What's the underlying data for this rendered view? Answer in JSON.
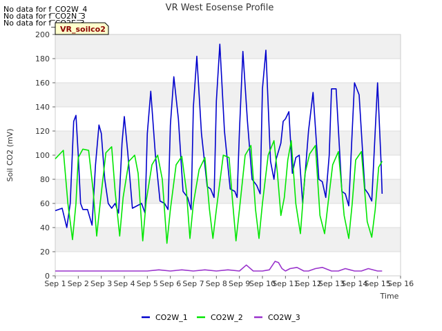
{
  "no_data_messages": [
    "No data for f_CO2W_4",
    "No data for f_CO2N_3",
    "No data for f_CO2E_3"
  ],
  "site_label": "VR_soilco2",
  "chart_data": {
    "type": "line",
    "title": "VR West Eosense Profile",
    "xlabel": "Time",
    "ylabel": "Soil CO2 (mV)",
    "xlim": [
      1,
      16
    ],
    "ylim": [
      0,
      200
    ],
    "x_ticks": [
      1,
      2,
      3,
      4,
      5,
      6,
      7,
      8,
      9,
      10,
      11,
      12,
      13,
      14,
      15,
      16
    ],
    "x_tick_labels": [
      "Sep 1",
      "Sep 2",
      "Sep 3",
      "Sep 4",
      "Sep 5",
      "Sep 6",
      "Sep 7",
      "Sep 8",
      "Sep 9",
      "Sep 10",
      "Sep 11",
      "Sep 12",
      "Sep 13",
      "Sep 14",
      "Sep 15",
      "Sep 16"
    ],
    "y_ticks": [
      0,
      20,
      40,
      60,
      80,
      100,
      120,
      140,
      160,
      180,
      200
    ],
    "grid": true,
    "legend_position": "bottom",
    "series": [
      {
        "name": "CO2W_1",
        "color": "#0000cc",
        "x": [
          1.0,
          1.3,
          1.5,
          1.65,
          1.8,
          1.9,
          2.0,
          2.1,
          2.2,
          2.4,
          2.6,
          2.75,
          2.9,
          3.0,
          3.15,
          3.3,
          3.45,
          3.6,
          3.75,
          3.9,
          4.0,
          4.15,
          4.35,
          4.55,
          4.75,
          4.9,
          5.0,
          5.15,
          5.35,
          5.55,
          5.75,
          5.9,
          6.0,
          6.15,
          6.35,
          6.55,
          6.75,
          6.9,
          7.0,
          7.15,
          7.35,
          7.6,
          7.75,
          7.9,
          8.0,
          8.15,
          8.35,
          8.6,
          8.8,
          8.9,
          9.0,
          9.15,
          9.35,
          9.55,
          9.75,
          9.9,
          10.0,
          10.15,
          10.35,
          10.5,
          10.6,
          10.8,
          10.9,
          11.0,
          11.15,
          11.3,
          11.45,
          11.6,
          11.75,
          11.9,
          12.0,
          12.2,
          12.45,
          12.6,
          12.75,
          12.9,
          13.0,
          13.2,
          13.45,
          13.6,
          13.75,
          13.9,
          14.0,
          14.2,
          14.45,
          14.6,
          14.75,
          14.9,
          15.0,
          15.15,
          15.2
        ],
        "values": [
          54,
          56,
          40,
          60,
          128,
          133,
          100,
          60,
          55,
          55,
          42,
          92,
          125,
          118,
          80,
          60,
          56,
          60,
          52,
          110,
          132,
          102,
          56,
          58,
          60,
          52,
          118,
          153,
          100,
          62,
          60,
          55,
          125,
          165,
          130,
          70,
          65,
          55,
          140,
          182,
          118,
          74,
          72,
          65,
          145,
          192,
          120,
          72,
          70,
          65,
          120,
          186,
          128,
          80,
          75,
          68,
          155,
          187,
          95,
          80,
          97,
          110,
          128,
          130,
          136,
          85,
          98,
          100,
          60,
          95,
          120,
          152,
          80,
          78,
          65,
          100,
          155,
          155,
          70,
          68,
          58,
          120,
          160,
          150,
          72,
          68,
          62,
          120,
          160,
          95,
          68
        ]
      },
      {
        "name": "CO2W_2",
        "color": "#00e600",
        "x": [
          1.0,
          1.15,
          1.35,
          1.55,
          1.75,
          1.9,
          2.0,
          2.2,
          2.45,
          2.65,
          2.8,
          2.95,
          3.2,
          3.45,
          3.6,
          3.8,
          3.95,
          4.2,
          4.45,
          4.6,
          4.8,
          4.95,
          5.2,
          5.45,
          5.65,
          5.85,
          6.0,
          6.25,
          6.5,
          6.7,
          6.85,
          7.0,
          7.25,
          7.5,
          7.7,
          7.85,
          8.0,
          8.3,
          8.55,
          8.7,
          8.85,
          9.0,
          9.25,
          9.5,
          9.7,
          9.85,
          10.0,
          10.25,
          10.5,
          10.65,
          10.8,
          10.95,
          11.1,
          11.25,
          11.45,
          11.65,
          11.85,
          12.05,
          12.3,
          12.5,
          12.7,
          12.85,
          13.05,
          13.3,
          13.55,
          13.75,
          13.9,
          14.05,
          14.3,
          14.55,
          14.75,
          14.9,
          15.05,
          15.2
        ],
        "values": [
          97,
          100,
          104,
          60,
          30,
          60,
          98,
          105,
          104,
          70,
          33,
          60,
          102,
          107,
          70,
          33,
          65,
          95,
          100,
          85,
          29,
          62,
          92,
          100,
          80,
          27,
          55,
          92,
          99,
          70,
          31,
          60,
          88,
          98,
          55,
          31,
          55,
          100,
          98,
          62,
          29,
          55,
          100,
          108,
          55,
          31,
          60,
          100,
          112,
          85,
          50,
          65,
          96,
          112,
          60,
          35,
          85,
          101,
          108,
          50,
          35,
          60,
          92,
          103,
          50,
          31,
          60,
          96,
          103,
          45,
          32,
          55,
          90,
          95
        ]
      },
      {
        "name": "CO2W_3",
        "color": "#9932cc",
        "x": [
          1.0,
          1.5,
          2.0,
          2.5,
          3.0,
          3.5,
          4.0,
          4.5,
          5.0,
          5.5,
          6.0,
          6.5,
          7.0,
          7.5,
          8.0,
          8.5,
          9.0,
          9.3,
          9.6,
          9.8,
          10.0,
          10.3,
          10.55,
          10.7,
          10.85,
          11.0,
          11.2,
          11.5,
          11.8,
          12.0,
          12.3,
          12.6,
          13.0,
          13.3,
          13.6,
          14.0,
          14.3,
          14.6,
          15.0,
          15.2
        ],
        "values": [
          4,
          4,
          4,
          4,
          4,
          4,
          4,
          4,
          4,
          5,
          4,
          5,
          4,
          5,
          4,
          5,
          4,
          9,
          4,
          4,
          4,
          5,
          12,
          11,
          6,
          4,
          6,
          7,
          4,
          4,
          6,
          7,
          4,
          4,
          6,
          4,
          4,
          6,
          4,
          4
        ]
      }
    ]
  }
}
